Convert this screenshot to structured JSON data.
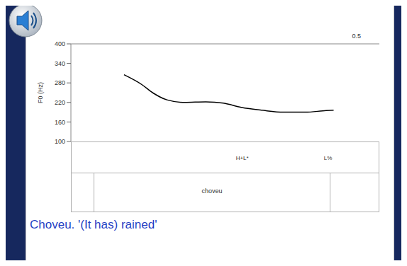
{
  "chart_data": {
    "type": "line",
    "y_label": "F0 (Hz)",
    "ylim": [
      100,
      400
    ],
    "yticks": [
      100,
      160,
      220,
      280,
      340,
      400
    ],
    "xlim": [
      0,
      0.54
    ],
    "xticks": [
      0.5
    ],
    "x": [
      0.093,
      0.124,
      0.143,
      0.168,
      0.199,
      0.236,
      0.267,
      0.298,
      0.335,
      0.372,
      0.41,
      0.447,
      0.46
    ],
    "values": [
      305,
      275,
      250,
      228,
      220,
      222,
      218,
      205,
      196,
      190,
      190,
      195,
      196
    ],
    "color": "#000000",
    "annotations": [
      {
        "text": "H+L*",
        "x": 0.3
      },
      {
        "text": "L%",
        "x": 0.45
      }
    ]
  },
  "word": "choveu",
  "caption": "Choveu. '(It has) rained'"
}
